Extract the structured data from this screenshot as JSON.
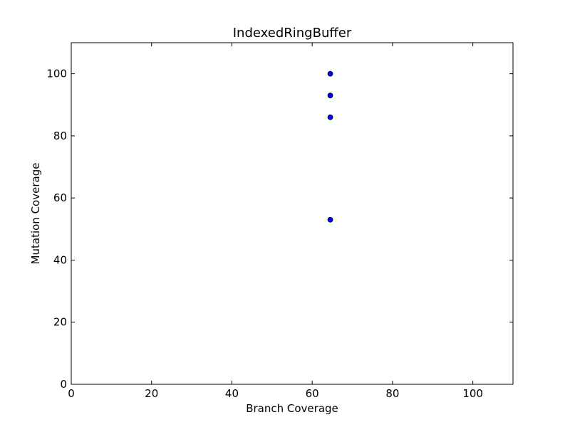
{
  "chart_data": {
    "type": "scatter",
    "title": "IndexedRingBuffer",
    "xlabel": "Branch Coverage",
    "ylabel": "Mutation Coverage",
    "xlim": [
      0,
      110
    ],
    "ylim": [
      0,
      110
    ],
    "xticks": [
      0,
      20,
      40,
      60,
      80,
      100
    ],
    "yticks": [
      0,
      20,
      40,
      60,
      80,
      100
    ],
    "grid": false,
    "marker_color": "#0000ff",
    "marker_edge_color": "#000000",
    "points": [
      {
        "x": 64.5,
        "y": 100
      },
      {
        "x": 64.5,
        "y": 93
      },
      {
        "x": 64.5,
        "y": 86
      },
      {
        "x": 64.5,
        "y": 53
      }
    ]
  }
}
